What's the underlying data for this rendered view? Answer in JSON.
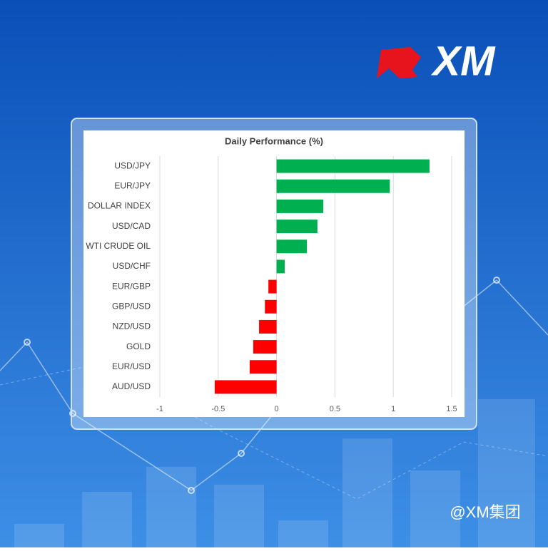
{
  "logo": "XM",
  "watermark": "@XM集团",
  "chart_data": {
    "type": "bar",
    "orientation": "horizontal",
    "title": "Daily Performance (%)",
    "categories": [
      "USD/JPY",
      "EUR/JPY",
      "DOLLAR INDEX",
      "USD/CAD",
      "WTI CRUDE OIL",
      "USD/CHF",
      "EUR/GBP",
      "GBP/USD",
      "NZD/USD",
      "GOLD",
      "EUR/USD",
      "AUD/USD"
    ],
    "values": [
      1.31,
      0.97,
      0.4,
      0.35,
      0.26,
      0.07,
      -0.07,
      -0.1,
      -0.15,
      -0.2,
      -0.23,
      -0.53
    ],
    "positive_color": "#00b050",
    "negative_color": "#ff0000",
    "xlim": [
      -1,
      1.5
    ],
    "xticks": [
      -1,
      -0.5,
      0,
      0.5,
      1,
      1.5
    ],
    "grid": true
  }
}
